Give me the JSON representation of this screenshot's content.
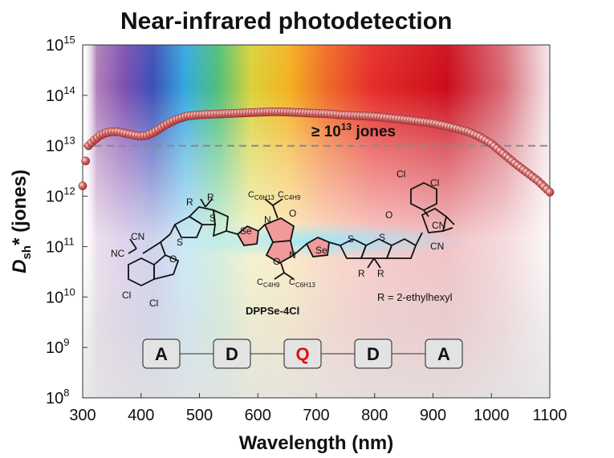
{
  "chart_data": {
    "type": "scatter",
    "title": "Near-infrared photodetection",
    "xlabel": "Wavelength (nm)",
    "ylabel": "D_sh* (jones)",
    "xlim": [
      300,
      1100
    ],
    "ylim_log10": [
      8,
      15
    ],
    "y_scale": "log",
    "grid": false,
    "x_ticks": [
      "300",
      "400",
      "500",
      "600",
      "700",
      "800",
      "900",
      "1000",
      "1100"
    ],
    "y_tick_exponents": [
      "8",
      "9",
      "10",
      "11",
      "12",
      "13",
      "14",
      "15"
    ],
    "threshold": {
      "y": 10000000000000.0,
      "style": "dashed",
      "label": "≥ 10^13 jones"
    },
    "series": [
      {
        "points": [
          [
            300,
            1600000000000.0
          ],
          [
            305,
            5000000000000.0
          ],
          [
            310,
            10000000000000.0
          ],
          [
            320,
            13000000000000.0
          ],
          [
            330,
            16000000000000.0
          ],
          [
            340,
            18000000000000.0
          ],
          [
            350,
            19000000000000.0
          ],
          [
            360,
            19000000000000.0
          ],
          [
            370,
            18000000000000.0
          ],
          [
            380,
            17000000000000.0
          ],
          [
            390,
            16000000000000.0
          ],
          [
            400,
            15500000000000.0
          ],
          [
            410,
            16000000000000.0
          ],
          [
            420,
            18000000000000.0
          ],
          [
            430,
            21000000000000.0
          ],
          [
            440,
            25000000000000.0
          ],
          [
            450,
            29000000000000.0
          ],
          [
            460,
            33000000000000.0
          ],
          [
            470,
            36000000000000.0
          ],
          [
            480,
            39000000000000.0
          ],
          [
            500,
            41000000000000.0
          ],
          [
            520,
            42000000000000.0
          ],
          [
            540,
            43000000000000.0
          ],
          [
            560,
            44000000000000.0
          ],
          [
            580,
            45000000000000.0
          ],
          [
            600,
            46000000000000.0
          ],
          [
            620,
            47000000000000.0
          ],
          [
            640,
            47000000000000.0
          ],
          [
            660,
            46000000000000.0
          ],
          [
            680,
            45000000000000.0
          ],
          [
            700,
            44000000000000.0
          ],
          [
            720,
            43000000000000.0
          ],
          [
            740,
            41000000000000.0
          ],
          [
            760,
            40000000000000.0
          ],
          [
            780,
            39000000000000.0
          ],
          [
            800,
            38000000000000.0
          ],
          [
            820,
            36000000000000.0
          ],
          [
            840,
            34000000000000.0
          ],
          [
            860,
            32000000000000.0
          ],
          [
            880,
            30000000000000.0
          ],
          [
            900,
            28000000000000.0
          ],
          [
            920,
            25000000000000.0
          ],
          [
            940,
            22000000000000.0
          ],
          [
            960,
            19000000000000.0
          ],
          [
            980,
            15000000000000.0
          ],
          [
            1000,
            11000000000000.0
          ],
          [
            1020,
            7000000000000.0
          ],
          [
            1040,
            4500000000000.0
          ],
          [
            1060,
            3000000000000.0
          ],
          [
            1080,
            2000000000000.0
          ],
          [
            1100,
            1200000000000.0
          ]
        ]
      }
    ],
    "annotation_threshold": {
      "text": "≥ 10",
      "exp": "13",
      "unit": " jones"
    },
    "molecule": {
      "name": "DPPSe-4Cl",
      "substituent_note": "R = 2-ethylhexyl",
      "labels": [
        "CN",
        "NC",
        "CN",
        "CN",
        "Cl",
        "Cl",
        "Cl",
        "Cl",
        "S",
        "S",
        "S",
        "S",
        "Se",
        "Se",
        "O",
        "O",
        "O",
        "O",
        "N",
        "N",
        "R",
        "R",
        "R",
        "R"
      ],
      "chains": [
        "C6H13",
        "C4H9",
        "C4H9",
        "C6H13"
      ]
    },
    "architecture": [
      {
        "text": "A",
        "color": "#111111"
      },
      {
        "text": "D",
        "color": "#111111"
      },
      {
        "text": "Q",
        "color": "#e01010"
      },
      {
        "text": "D",
        "color": "#111111"
      },
      {
        "text": "A",
        "color": "#111111"
      }
    ],
    "colors": {
      "marker": "#c84a4a",
      "marker_highlight": "#f6dada",
      "threshold_line": "#8a8a8a"
    }
  }
}
